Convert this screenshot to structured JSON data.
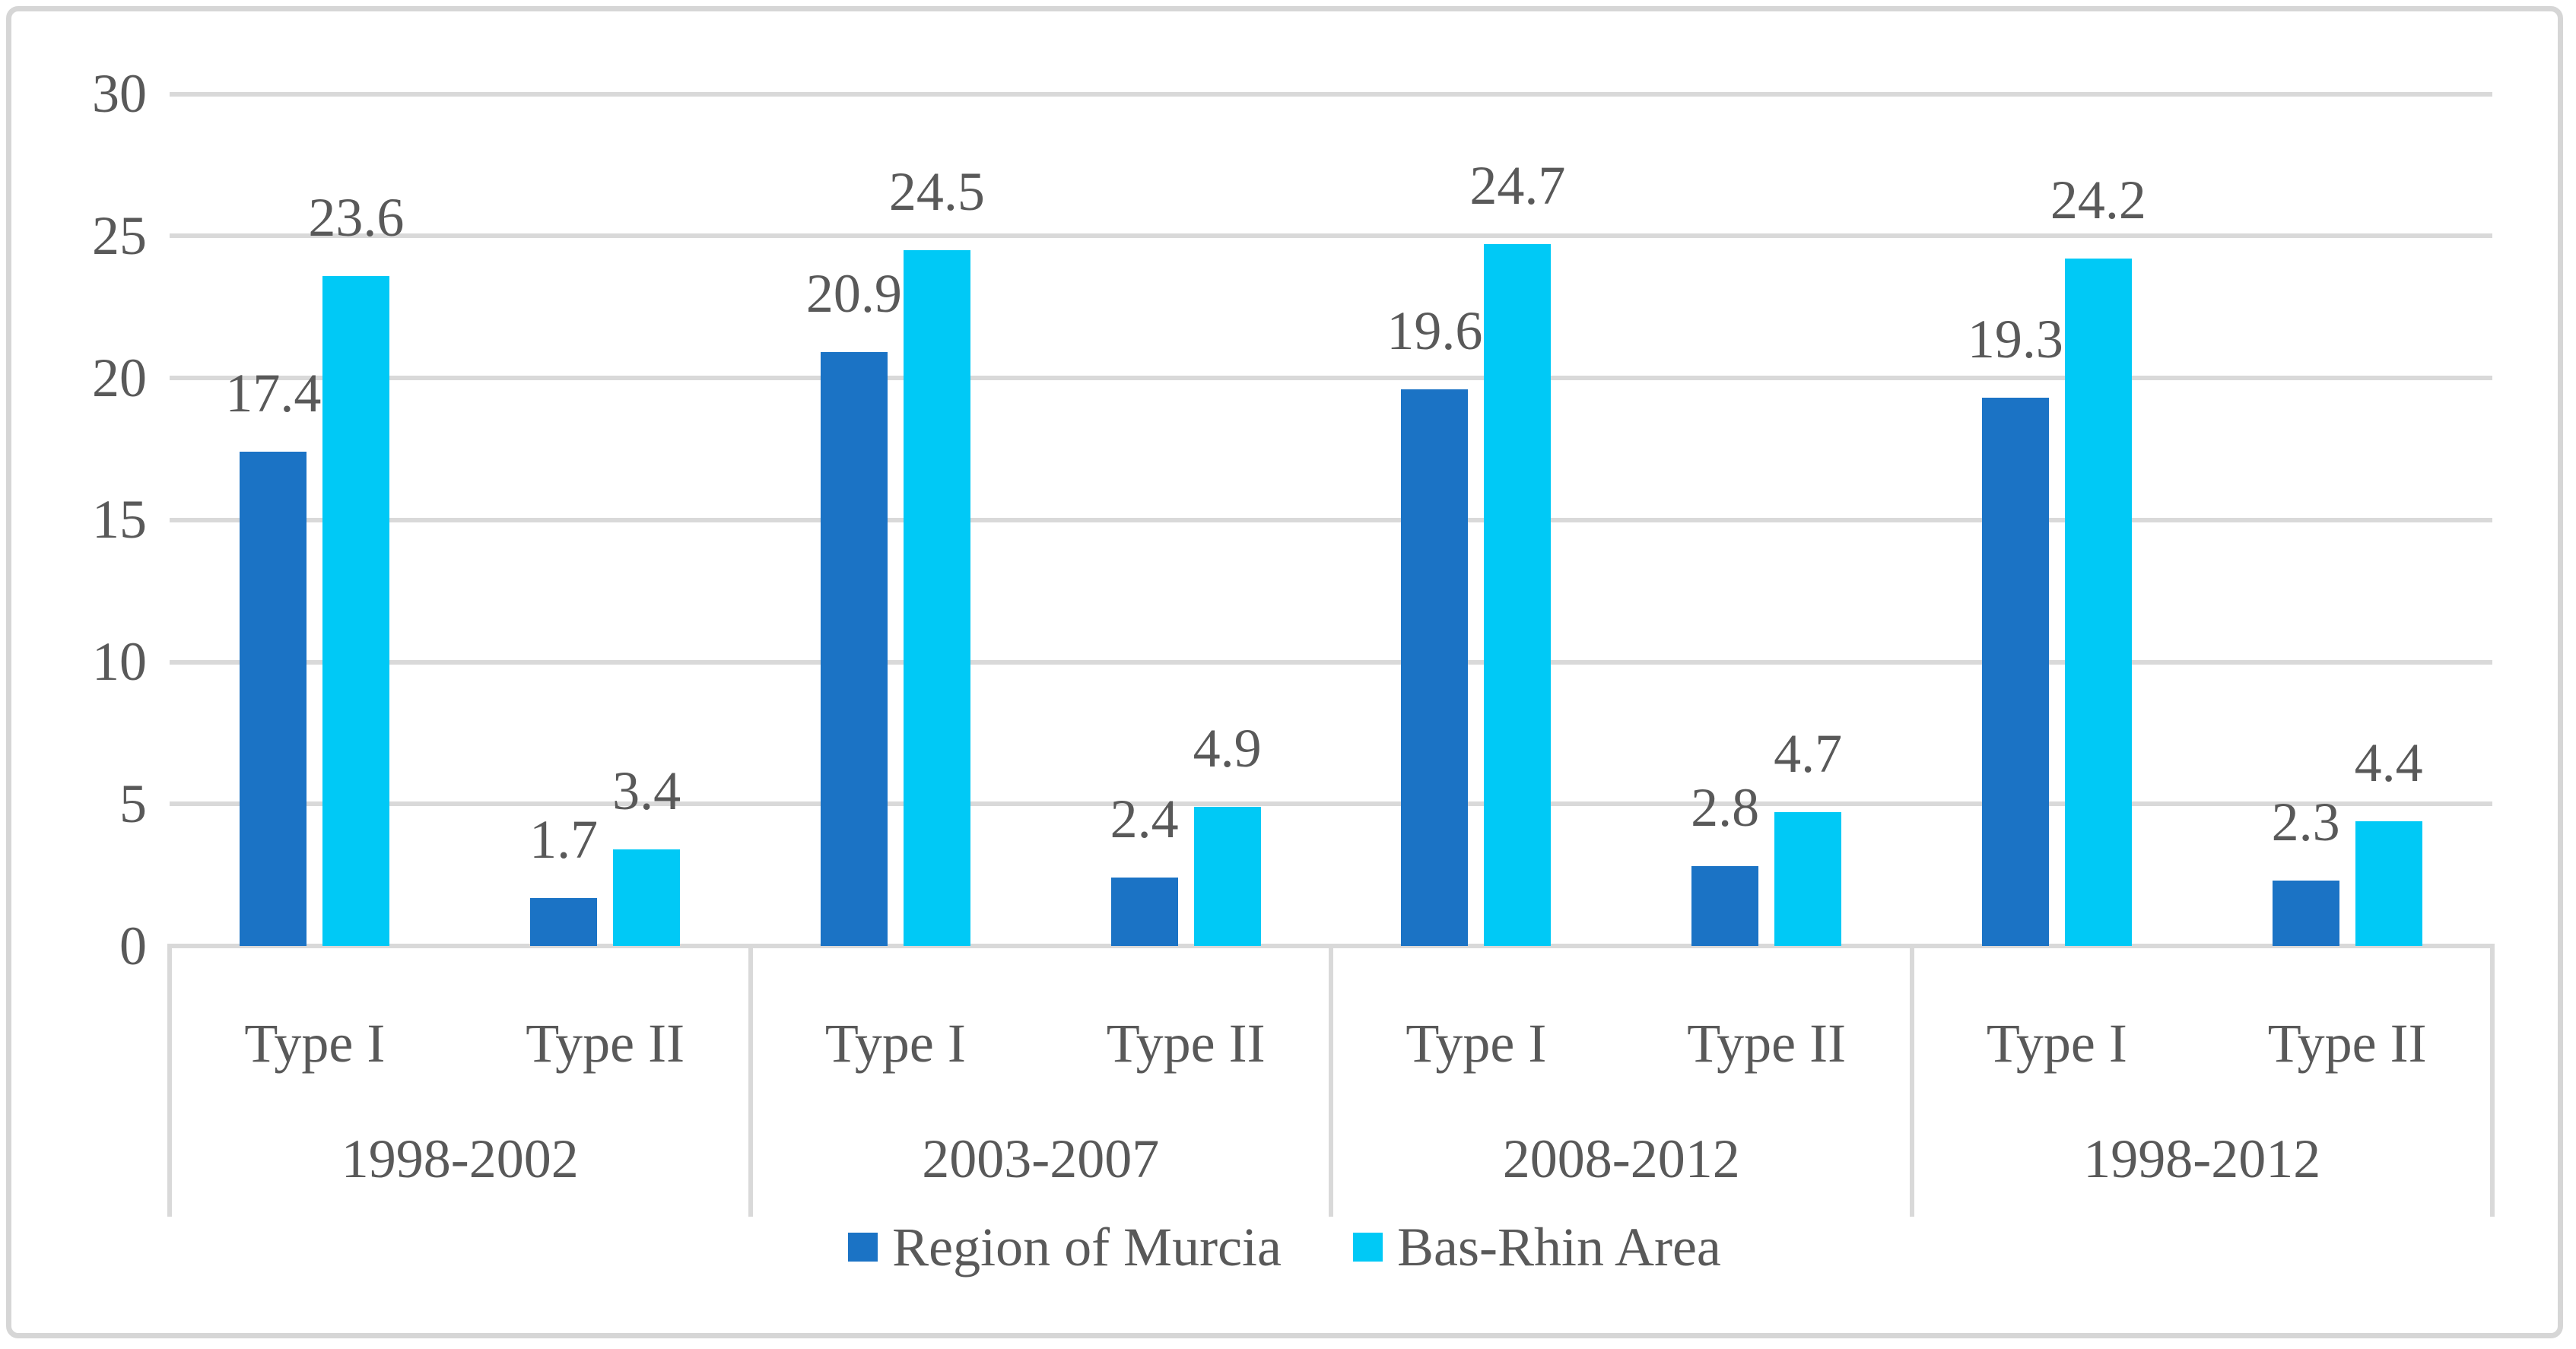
{
  "chart_data": {
    "type": "bar",
    "title": "",
    "groups": [
      "1998-2002",
      "2003-2007",
      "2008-2012",
      "1998-2012"
    ],
    "categories_per_group": [
      "Type I",
      "Type II"
    ],
    "series": [
      {
        "name": "Region of Murcia",
        "color": "#1B73C5",
        "values": [
          17.4,
          1.7,
          20.9,
          2.4,
          19.6,
          2.8,
          19.3,
          2.3
        ]
      },
      {
        "name": "Bas-Rhin Area",
        "color": "#00C9F6",
        "values": [
          23.6,
          3.4,
          24.5,
          4.9,
          24.7,
          4.7,
          24.2,
          4.4
        ]
      }
    ],
    "ylim": [
      0,
      30
    ],
    "yticks": [
      0,
      5,
      10,
      15,
      20,
      25,
      30
    ],
    "grid": true,
    "value_labels": true,
    "legend_position": "bottom",
    "colors": {
      "grid": "#D9D9D9",
      "frame_border": "#D6D6D6",
      "text": "#595959",
      "background": "#FFFFFF"
    }
  }
}
